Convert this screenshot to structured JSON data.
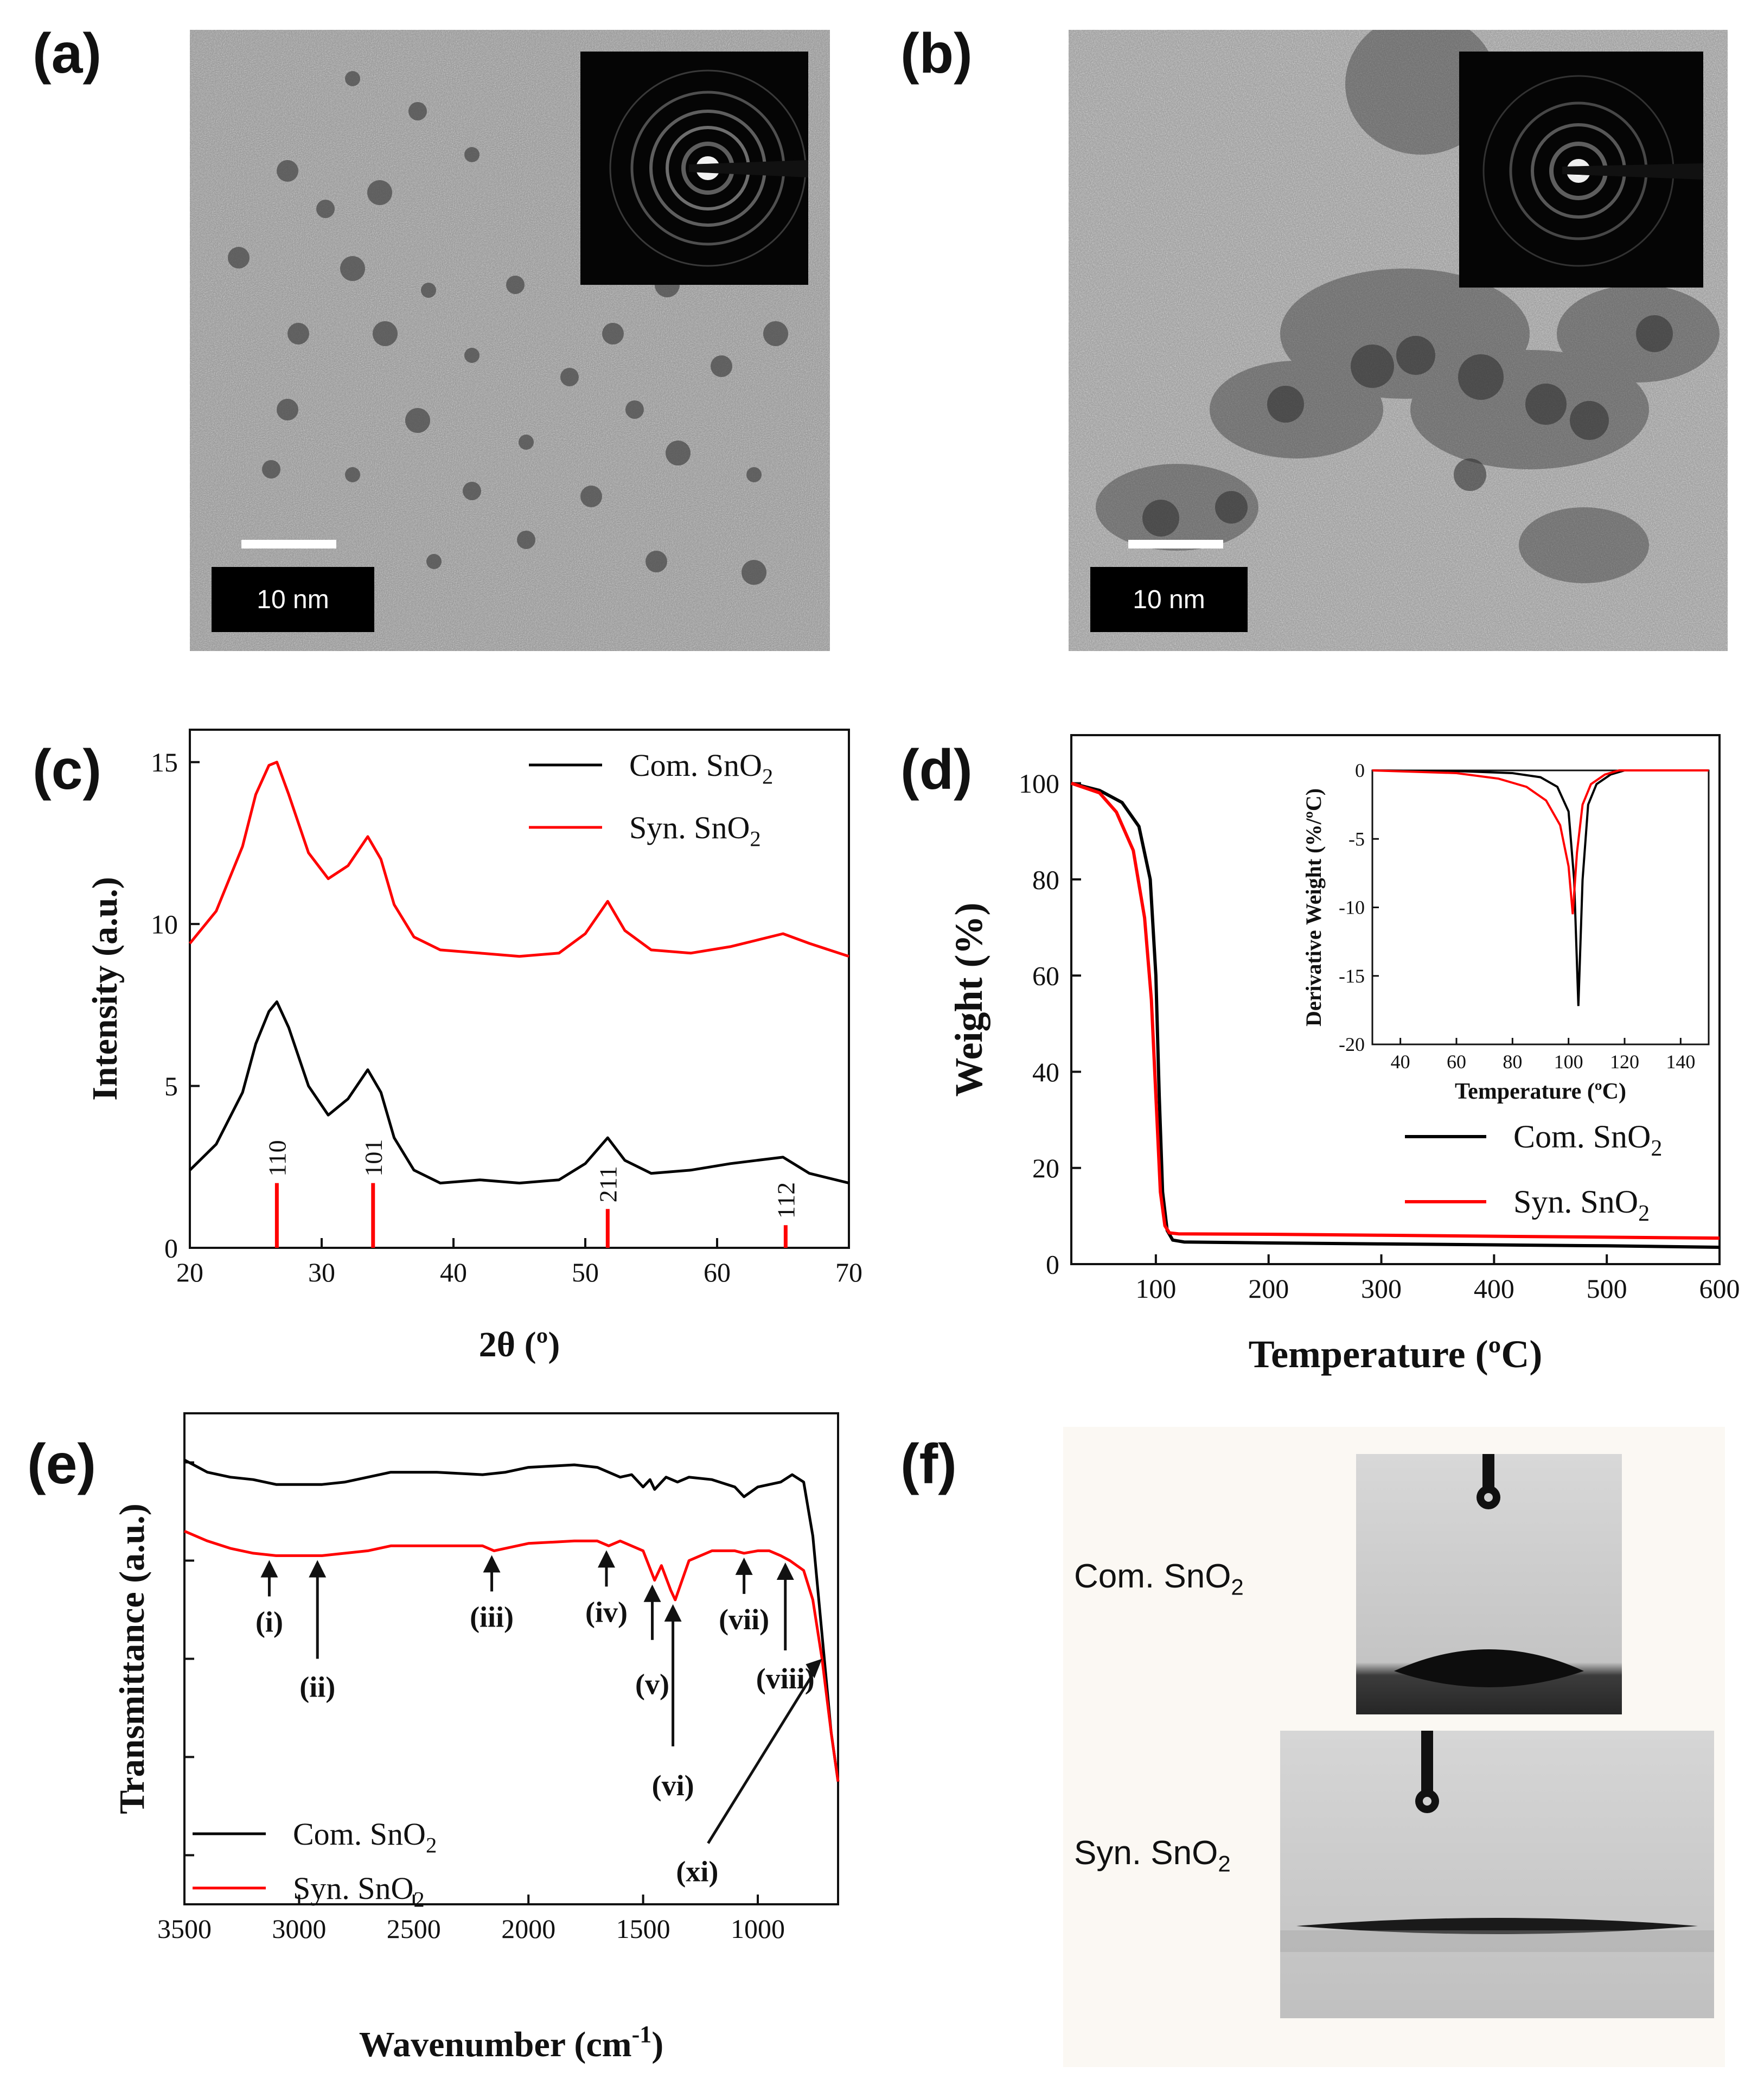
{
  "panels": {
    "a": "(a)",
    "b": "(b)",
    "c": "(c)",
    "d": "(d)",
    "e": "(e)",
    "f": "(f)"
  },
  "tem": {
    "a_scale": "10 nm",
    "b_scale": "10 nm"
  },
  "wetting": {
    "com_label": "Com. SnO",
    "syn_label": "Syn. SnO",
    "sub": "2"
  },
  "chart_data": [
    {
      "id": "c",
      "type": "line",
      "title": "",
      "xlabel": "2θ (º)",
      "ylabel": "Intensity (a.u.)",
      "xlim": [
        20,
        70
      ],
      "ylim": [
        0,
        16
      ],
      "xticks": [
        20,
        30,
        40,
        50,
        60,
        70
      ],
      "yticks": [
        0,
        5,
        10,
        15
      ],
      "legend": {
        "position": "top-right",
        "entries": [
          "Com. SnO2",
          "Syn. SnO2"
        ]
      },
      "series": [
        {
          "name": "Com. SnO2",
          "color": "#000000",
          "x": [
            20,
            22,
            24,
            25,
            26,
            26.6,
            27.5,
            29,
            30.5,
            32,
            33.5,
            34.5,
            35.5,
            37,
            39,
            42,
            45,
            48,
            50,
            51.7,
            53,
            55,
            58,
            61,
            63,
            65,
            67,
            70
          ],
          "y": [
            2.4,
            3.2,
            4.8,
            6.3,
            7.3,
            7.6,
            6.8,
            5.0,
            4.1,
            4.6,
            5.5,
            4.8,
            3.4,
            2.4,
            2.0,
            2.1,
            2.0,
            2.1,
            2.6,
            3.4,
            2.7,
            2.3,
            2.4,
            2.6,
            2.7,
            2.8,
            2.3,
            2.0
          ]
        },
        {
          "name": "Syn. SnO2",
          "color": "#ff0000",
          "x": [
            20,
            22,
            24,
            25,
            26,
            26.6,
            27.5,
            29,
            30.5,
            32,
            33.5,
            34.5,
            35.5,
            37,
            39,
            42,
            45,
            48,
            50,
            51.7,
            53,
            55,
            58,
            61,
            63,
            65,
            67,
            70
          ],
          "y": [
            9.4,
            10.4,
            12.4,
            14.0,
            14.9,
            15.0,
            14.0,
            12.2,
            11.4,
            11.8,
            12.7,
            12.0,
            10.6,
            9.6,
            9.2,
            9.1,
            9.0,
            9.1,
            9.7,
            10.7,
            9.8,
            9.2,
            9.1,
            9.3,
            9.5,
            9.7,
            9.4,
            9.0
          ]
        }
      ],
      "reference_peaks": [
        {
          "x": 26.6,
          "height": 2.0,
          "label": "110"
        },
        {
          "x": 33.9,
          "height": 2.0,
          "label": "101"
        },
        {
          "x": 51.7,
          "height": 1.2,
          "label": "211"
        },
        {
          "x": 65.2,
          "height": 0.7,
          "label": "112"
        }
      ]
    },
    {
      "id": "d",
      "type": "line",
      "title": "",
      "xlabel": "Temperature (ºC)",
      "ylabel": "Weight (%)",
      "xlim": [
        25,
        600
      ],
      "ylim": [
        0,
        110
      ],
      "xticks": [
        100,
        200,
        300,
        400,
        500,
        600
      ],
      "yticks": [
        0,
        20,
        40,
        60,
        80,
        100
      ],
      "legend": {
        "position": "bottom-right",
        "entries": [
          "Com. SnO2",
          "Syn. SnO2"
        ]
      },
      "series": [
        {
          "name": "Com. SnO2",
          "color": "#000000",
          "x": [
            25,
            50,
            70,
            85,
            95,
            100,
            103,
            106,
            110,
            115,
            125,
            200,
            300,
            400,
            500,
            600
          ],
          "y": [
            100,
            98.5,
            96,
            91,
            80,
            60,
            35,
            15,
            7,
            5,
            4.6,
            4.4,
            4.2,
            4.0,
            3.8,
            3.5
          ]
        },
        {
          "name": "Syn. SnO2",
          "color": "#ff0000",
          "x": [
            25,
            50,
            65,
            80,
            90,
            96,
            100,
            104,
            108,
            112,
            120,
            200,
            300,
            400,
            500,
            600
          ],
          "y": [
            100,
            98,
            94,
            86,
            72,
            55,
            35,
            15,
            8,
            6.5,
            6.3,
            6.2,
            6.0,
            5.8,
            5.6,
            5.4
          ]
        }
      ],
      "inset": {
        "xlabel": "Temperature (ºC)",
        "ylabel": "Derivative Weight (%/ºC)",
        "xlim": [
          30,
          150
        ],
        "ylim": [
          -20,
          0
        ],
        "xticks": [
          40,
          60,
          80,
          100,
          120,
          140
        ],
        "yticks": [
          0,
          -5,
          -10,
          -15,
          -20
        ],
        "series": [
          {
            "name": "Com. SnO2",
            "color": "#000000",
            "x": [
              30,
              60,
              80,
              90,
              96,
              100,
              102,
              103.5,
              105,
              107,
              110,
              115,
              120,
              150
            ],
            "y": [
              0,
              -0.05,
              -0.2,
              -0.5,
              -1.2,
              -3,
              -8,
              -17.2,
              -8,
              -2.5,
              -1,
              -0.3,
              0,
              0
            ]
          },
          {
            "name": "Syn. SnO2",
            "color": "#ff0000",
            "x": [
              30,
              60,
              75,
              85,
              92,
              97,
              100,
              101.5,
              103,
              105,
              108,
              113,
              118,
              150
            ],
            "y": [
              0,
              -0.2,
              -0.6,
              -1.2,
              -2.2,
              -4,
              -7,
              -10.5,
              -6,
              -2.5,
              -1,
              -0.3,
              0,
              0
            ]
          }
        ]
      }
    },
    {
      "id": "e",
      "type": "line",
      "title": "",
      "xlabel": "Wavenumber (cm-1)",
      "ylabel": "Transmittance (a.u.)",
      "xlim": [
        3500,
        650
      ],
      "ylim": [
        0,
        1
      ],
      "xticks": [
        3500,
        3000,
        2500,
        2000,
        1500,
        1000
      ],
      "legend": {
        "position": "bottom-left",
        "entries": [
          "Com. SnO2",
          "Syn. SnO2"
        ]
      },
      "series": [
        {
          "name": "Com. SnO2",
          "color": "#000000",
          "x": [
            3500,
            3400,
            3300,
            3200,
            3100,
            3000,
            2900,
            2800,
            2700,
            2600,
            2400,
            2200,
            2100,
            2000,
            1800,
            1700,
            1600,
            1550,
            1500,
            1470,
            1450,
            1400,
            1350,
            1300,
            1200,
            1100,
            1060,
            1000,
            900,
            850,
            800,
            760,
            720,
            680,
            650
          ],
          "y": [
            0.905,
            0.88,
            0.87,
            0.865,
            0.855,
            0.855,
            0.855,
            0.86,
            0.87,
            0.88,
            0.88,
            0.875,
            0.88,
            0.89,
            0.895,
            0.89,
            0.87,
            0.875,
            0.85,
            0.865,
            0.845,
            0.87,
            0.86,
            0.87,
            0.865,
            0.85,
            0.83,
            0.85,
            0.86,
            0.875,
            0.86,
            0.75,
            0.55,
            0.35,
            0.25
          ]
        },
        {
          "name": "Syn. SnO2",
          "color": "#ff0000",
          "x": [
            3500,
            3400,
            3300,
            3200,
            3100,
            3000,
            2900,
            2800,
            2700,
            2600,
            2400,
            2200,
            2150,
            2000,
            1800,
            1700,
            1650,
            1600,
            1500,
            1450,
            1420,
            1380,
            1360,
            1330,
            1300,
            1200,
            1100,
            1060,
            1000,
            950,
            900,
            860,
            800,
            760,
            720,
            680,
            650
          ],
          "y": [
            0.76,
            0.74,
            0.725,
            0.715,
            0.71,
            0.71,
            0.71,
            0.715,
            0.72,
            0.73,
            0.73,
            0.73,
            0.72,
            0.735,
            0.74,
            0.74,
            0.73,
            0.74,
            0.72,
            0.66,
            0.69,
            0.64,
            0.62,
            0.66,
            0.7,
            0.72,
            0.72,
            0.715,
            0.72,
            0.72,
            0.71,
            0.7,
            0.68,
            0.62,
            0.5,
            0.35,
            0.25
          ]
        }
      ],
      "annotations": [
        {
          "label": "(i)",
          "x": 3130,
          "y": 0.71
        },
        {
          "label": "(ii)",
          "x": 2920,
          "y": 0.71
        },
        {
          "label": "(iii)",
          "x": 2160,
          "y": 0.72
        },
        {
          "label": "(iv)",
          "x": 1660,
          "y": 0.73
        },
        {
          "label": "(v)",
          "x": 1460,
          "y": 0.66
        },
        {
          "label": "(vi)",
          "x": 1370,
          "y": 0.62
        },
        {
          "label": "(vii)",
          "x": 1060,
          "y": 0.715
        },
        {
          "label": "(viii)",
          "x": 880,
          "y": 0.705
        },
        {
          "label": "(xi)",
          "x": 720,
          "y": 0.5
        }
      ]
    }
  ]
}
